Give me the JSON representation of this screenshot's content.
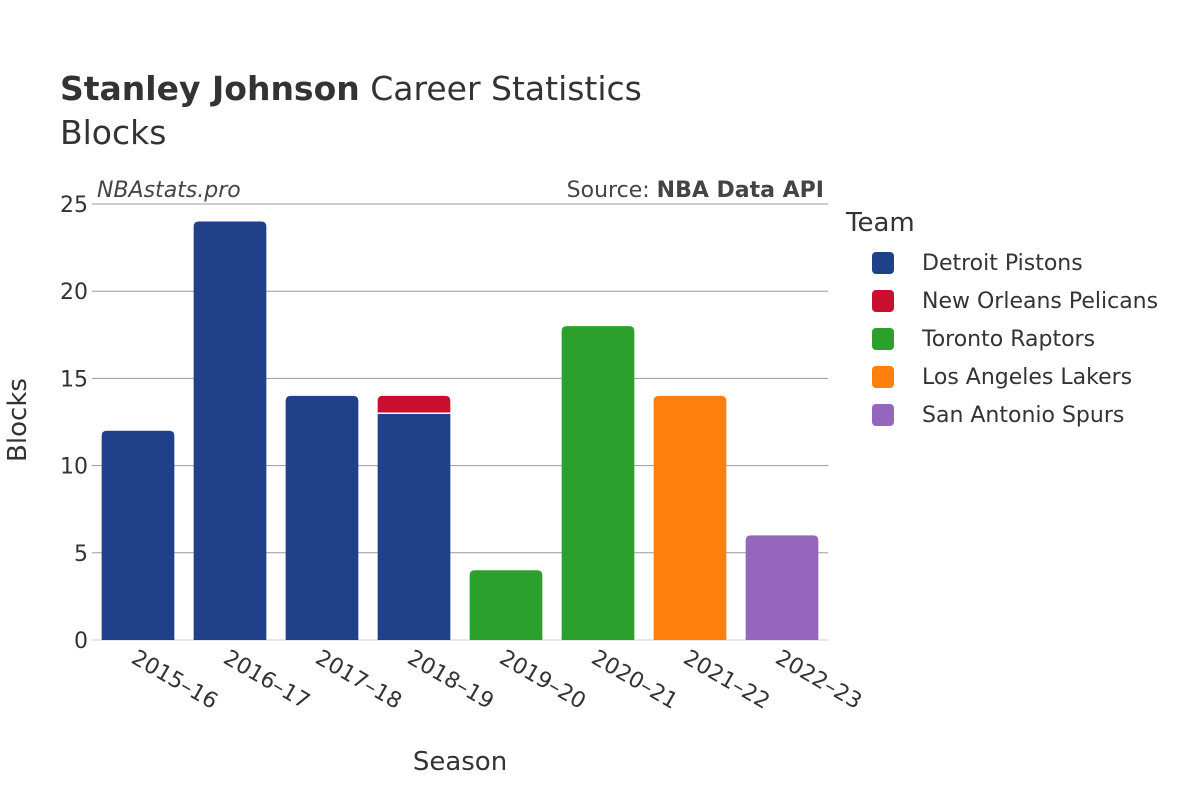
{
  "header": {
    "player_name": "Stanley Johnson",
    "title_suffix": "Career Statistics",
    "stat": "Blocks",
    "watermark": "NBAstats.pro",
    "source_prefix": "Source:",
    "source_name": "NBA Data API"
  },
  "legend": {
    "title": "Team",
    "items": [
      {
        "label": "Detroit Pistons",
        "color": "#1f4189"
      },
      {
        "label": "New Orleans Pelicans",
        "color": "#c8102e"
      },
      {
        "label": "Toronto Raptors",
        "color": "#2ca02c"
      },
      {
        "label": "Los Angeles Lakers",
        "color": "#ff7f0e"
      },
      {
        "label": "San Antonio Spurs",
        "color": "#9467bd"
      }
    ]
  },
  "chart_data": {
    "type": "bar",
    "stacked": true,
    "title": "Stanley Johnson Career Statistics",
    "subtitle": "Blocks",
    "xlabel": "Season",
    "ylabel": "Blocks",
    "ylim": [
      0,
      25
    ],
    "yticks": [
      0,
      5,
      10,
      15,
      20,
      25
    ],
    "grid": true,
    "legend_position": "right",
    "categories": [
      "2015–16",
      "2016–17",
      "2017–18",
      "2018–19",
      "2019–20",
      "2020–21",
      "2021–22",
      "2022–23"
    ],
    "series": [
      {
        "name": "Detroit Pistons",
        "color": "#1f4189",
        "values": [
          12,
          24,
          14,
          13,
          0,
          0,
          0,
          0
        ]
      },
      {
        "name": "New Orleans Pelicans",
        "color": "#c8102e",
        "values": [
          0,
          0,
          0,
          1,
          0,
          0,
          0,
          0
        ]
      },
      {
        "name": "Toronto Raptors",
        "color": "#2ca02c",
        "values": [
          0,
          0,
          0,
          0,
          4,
          18,
          0,
          0
        ]
      },
      {
        "name": "Los Angeles Lakers",
        "color": "#ff7f0e",
        "values": [
          0,
          0,
          0,
          0,
          0,
          0,
          14,
          0
        ]
      },
      {
        "name": "San Antonio Spurs",
        "color": "#9467bd",
        "values": [
          0,
          0,
          0,
          0,
          0,
          0,
          0,
          6
        ]
      }
    ]
  }
}
